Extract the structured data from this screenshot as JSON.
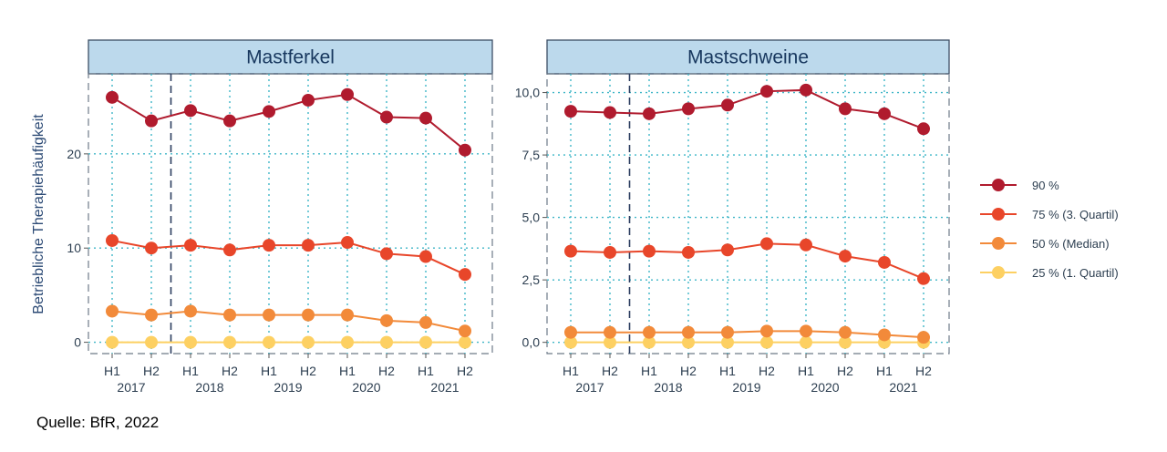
{
  "source": "Quelle: BfR, 2022",
  "chart_data": {
    "type": "line",
    "ylabel": "Betriebliche Therapiehäufigkeit",
    "x_labels": [
      {
        "half": "H1",
        "year": "2017"
      },
      {
        "half": "H2",
        "year": ""
      },
      {
        "half": "H1",
        "year": "2018"
      },
      {
        "half": "H2",
        "year": ""
      },
      {
        "half": "H1",
        "year": "2019"
      },
      {
        "half": "H2",
        "year": ""
      },
      {
        "half": "H1",
        "year": "2020"
      },
      {
        "half": "H2",
        "year": ""
      },
      {
        "half": "H1",
        "year": "2021"
      },
      {
        "half": "H2",
        "year": ""
      }
    ],
    "legend": [
      {
        "label": "90 %",
        "color": "#b01b2e"
      },
      {
        "label": "75 % (3. Quartil)",
        "color": "#e8462a"
      },
      {
        "label": "50 % (Median)",
        "color": "#f28a3a"
      },
      {
        "label": "25 % (1. Quartil)",
        "color": "#fdd062"
      }
    ],
    "panels": [
      {
        "title": "Mastferkel",
        "ylim": [
          -1.2,
          28.5
        ],
        "yticks": [
          0,
          10,
          20
        ],
        "ytick_labels": [
          "0",
          "10",
          "20"
        ],
        "series": [
          {
            "name": "90 %",
            "values": [
              26.0,
              23.5,
              24.6,
              23.5,
              24.5,
              25.7,
              26.3,
              23.9,
              23.8,
              20.4
            ]
          },
          {
            "name": "75 % (3. Quartil)",
            "values": [
              10.8,
              10.0,
              10.3,
              9.8,
              10.3,
              10.3,
              10.6,
              9.4,
              9.1,
              7.2
            ]
          },
          {
            "name": "50 % (Median)",
            "values": [
              3.3,
              2.9,
              3.3,
              2.9,
              2.9,
              2.9,
              2.9,
              2.3,
              2.1,
              1.2
            ]
          },
          {
            "name": "25 % (1. Quartil)",
            "values": [
              0,
              0,
              0,
              0,
              0,
              0,
              0,
              0,
              0,
              0
            ]
          }
        ]
      },
      {
        "title": "Mastschweine",
        "ylim": [
          -0.45,
          10.75
        ],
        "yticks": [
          0,
          2.5,
          5,
          7.5,
          10
        ],
        "ytick_labels": [
          "0,0",
          "2,5",
          "5,0",
          "7,5",
          "10,0"
        ],
        "series": [
          {
            "name": "90 %",
            "values": [
              9.25,
              9.2,
              9.15,
              9.35,
              9.5,
              10.05,
              10.1,
              9.35,
              9.15,
              8.55
            ]
          },
          {
            "name": "75 % (3. Quartil)",
            "values": [
              3.65,
              3.6,
              3.65,
              3.6,
              3.7,
              3.95,
              3.9,
              3.45,
              3.2,
              2.55
            ]
          },
          {
            "name": "50 % (Median)",
            "values": [
              0.4,
              0.4,
              0.4,
              0.4,
              0.4,
              0.45,
              0.45,
              0.4,
              0.3,
              0.2
            ]
          },
          {
            "name": "25 % (1. Quartil)",
            "values": [
              0,
              0,
              0,
              0,
              0,
              0,
              0,
              0,
              0,
              0
            ]
          }
        ]
      }
    ]
  }
}
